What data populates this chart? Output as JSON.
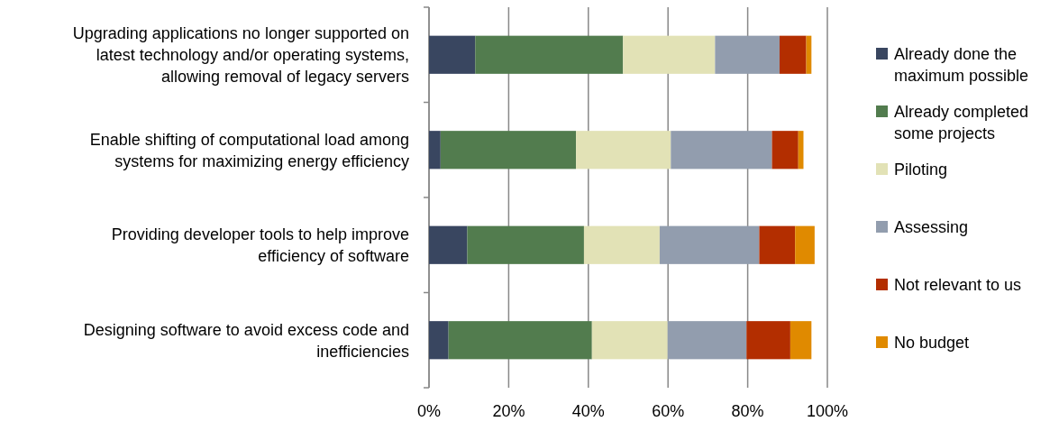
{
  "chart_data": {
    "type": "bar",
    "orientation": "horizontal",
    "stacked": true,
    "categories": [
      "Upgrading applications  no longer supported on\nlatest technology and/or operating systems,\nallowing removal of legacy servers",
      "Enable shifting of computational load among\nsystems for maximizing  energy efficiency",
      "Providing developer tools to help improve\nefficiency of software",
      "Designing software  to avoid excess code and\ninefficiencies"
    ],
    "series": [
      {
        "name": "Already done the\nmaximum possible",
        "color": "#394660",
        "values": [
          11.6,
          2.9,
          9.6,
          4.9
        ]
      },
      {
        "name": "Already completed\nsome projects",
        "color": "#527c4e",
        "values": [
          37.1,
          34.0,
          29.3,
          36.0
        ]
      },
      {
        "name": "Piloting",
        "color": "#e2e2b6",
        "values": [
          23.1,
          23.8,
          19.0,
          19.0
        ]
      },
      {
        "name": "Assessing",
        "color": "#929dae",
        "values": [
          16.2,
          25.4,
          25.0,
          19.8
        ]
      },
      {
        "name": "Not relevant to us",
        "color": "#b32e00",
        "values": [
          6.7,
          6.6,
          9.0,
          11.0
        ]
      },
      {
        "name": "No budget",
        "color": "#e08a00",
        "values": [
          1.3,
          1.3,
          4.9,
          5.3
        ]
      }
    ],
    "xlim": [
      0,
      100
    ],
    "xticks": [
      {
        "value": 0,
        "label": "0%"
      },
      {
        "value": 20,
        "label": "20%"
      },
      {
        "value": 40,
        "label": "40%"
      },
      {
        "value": 60,
        "label": "60%"
      },
      {
        "value": 80,
        "label": "80%"
      },
      {
        "value": 100,
        "label": "100%"
      }
    ],
    "grid": "x",
    "legend": "right"
  }
}
